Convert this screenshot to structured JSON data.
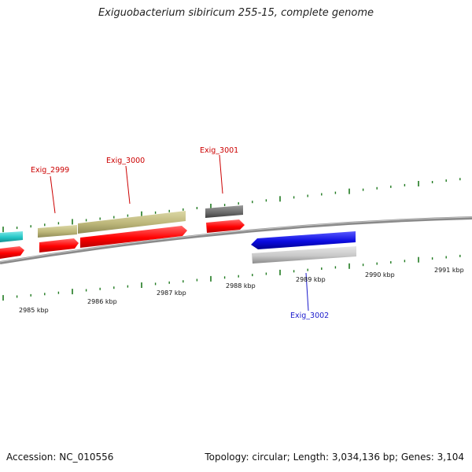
{
  "title": "Exiguobacterium sibiricum 255-15, complete genome",
  "footer": {
    "accession": "Accession: NC_010556",
    "summary": "Topology: circular; Length: 3,034,136 bp; Genes: 3,104"
  },
  "colors": {
    "backbone": "#7a7a7a",
    "tick_green": "#1f7a1f",
    "cds_red": "#ff0000",
    "cds_olive": "#bdb77a",
    "cds_cyan": "#23c6c6",
    "cds_gray_dark": "#6e6e6e",
    "cds_blue": "#0b0be0",
    "cds_gray_light": "#c8c8c8",
    "label_red": "#cc0000",
    "label_blue": "#1a1acc"
  },
  "scale": {
    "unit": "kbp",
    "labels": [
      "2985 kbp",
      "2986 kbp",
      "2987 kbp",
      "2988 kbp",
      "2989 kbp",
      "2990 kbp",
      "2991 kbp"
    ]
  },
  "genes": [
    {
      "name": "Exig_2999",
      "label_color": "#cc0000"
    },
    {
      "name": "Exig_3000",
      "label_color": "#cc0000"
    },
    {
      "name": "Exig_3001",
      "label_color": "#cc0000"
    },
    {
      "name": "Exig_3002",
      "label_color": "#1a1acc"
    }
  ]
}
